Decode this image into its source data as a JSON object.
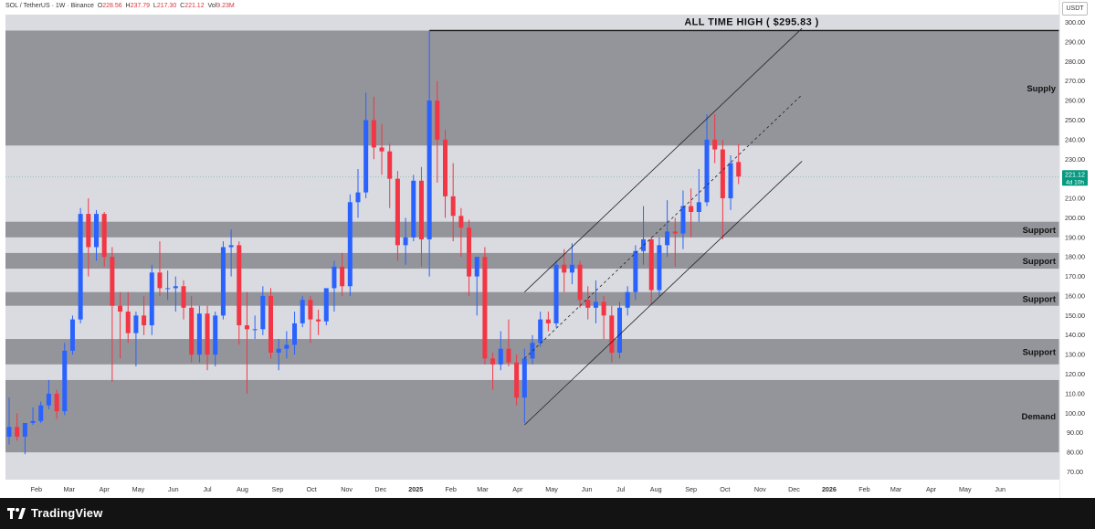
{
  "header": {
    "symbol": "SOL / TetherUS · 1W · Binance",
    "open_label": "O",
    "open": "228.56",
    "high_label": "H",
    "high": "237.79",
    "low_label": "L",
    "low": "217.30",
    "close_label": "C",
    "close": "221.12",
    "vol_label": "Vol",
    "vol": "9.23M"
  },
  "currency_badge": "USDT",
  "brand": "TradingView",
  "price_badge": {
    "price": "221.12",
    "countdown": "4d 10h"
  },
  "colors": {
    "up": "#2962ff",
    "down": "#f23645",
    "zone_dark": "#8f9196",
    "zone_light": "#d9dbe0",
    "channel": "#222222"
  },
  "chart_data": {
    "type": "candlestick",
    "title": "",
    "xlabel": "",
    "ylabel": "",
    "ylim": [
      66,
      304
    ],
    "y_ticks": [
      70,
      80,
      90,
      100,
      110,
      120,
      130,
      140,
      150,
      160,
      170,
      180,
      190,
      200,
      210,
      220,
      230,
      240,
      250,
      260,
      270,
      280,
      290,
      300
    ],
    "x_range": [
      "2024-01-08",
      "2026-07-20"
    ],
    "x_ticks": [
      {
        "date": "2024-02-01",
        "label": "Feb"
      },
      {
        "date": "2024-03-01",
        "label": "Mar"
      },
      {
        "date": "2024-04-01",
        "label": "Apr"
      },
      {
        "date": "2024-05-01",
        "label": "May"
      },
      {
        "date": "2024-06-01",
        "label": "Jun"
      },
      {
        "date": "2024-07-01",
        "label": "Jul"
      },
      {
        "date": "2024-08-01",
        "label": "Aug"
      },
      {
        "date": "2024-09-01",
        "label": "Sep"
      },
      {
        "date": "2024-10-01",
        "label": "Oct"
      },
      {
        "date": "2024-11-01",
        "label": "Nov"
      },
      {
        "date": "2024-12-01",
        "label": "Dec"
      },
      {
        "date": "2025-01-01",
        "label": "2025"
      },
      {
        "date": "2025-02-01",
        "label": "Feb"
      },
      {
        "date": "2025-03-01",
        "label": "Mar"
      },
      {
        "date": "2025-04-01",
        "label": "Apr"
      },
      {
        "date": "2025-05-01",
        "label": "May"
      },
      {
        "date": "2025-06-01",
        "label": "Jun"
      },
      {
        "date": "2025-07-01",
        "label": "Jul"
      },
      {
        "date": "2025-08-01",
        "label": "Aug"
      },
      {
        "date": "2025-09-01",
        "label": "Sep"
      },
      {
        "date": "2025-10-01",
        "label": "Oct"
      },
      {
        "date": "2025-11-01",
        "label": "Nov"
      },
      {
        "date": "2025-12-01",
        "label": "Dec"
      },
      {
        "date": "2026-01-01",
        "label": "2026"
      },
      {
        "date": "2026-02-01",
        "label": "Feb"
      },
      {
        "date": "2026-03-01",
        "label": "Mar"
      },
      {
        "date": "2026-04-01",
        "label": "Apr"
      },
      {
        "date": "2026-05-01",
        "label": "May"
      },
      {
        "date": "2026-06-01",
        "label": "Jun"
      }
    ],
    "ohlc": [
      {
        "d": "2024-01-08",
        "o": 88,
        "h": 108,
        "l": 84,
        "c": 93
      },
      {
        "d": "2024-01-15",
        "o": 93,
        "h": 100,
        "l": 86,
        "c": 88
      },
      {
        "d": "2024-01-22",
        "o": 88,
        "h": 95,
        "l": 79,
        "c": 95
      },
      {
        "d": "2024-01-29",
        "o": 95,
        "h": 103,
        "l": 94,
        "c": 96
      },
      {
        "d": "2024-02-05",
        "o": 96,
        "h": 106,
        "l": 95,
        "c": 104
      },
      {
        "d": "2024-02-12",
        "o": 104,
        "h": 117,
        "l": 102,
        "c": 110
      },
      {
        "d": "2024-02-19",
        "o": 110,
        "h": 112,
        "l": 97,
        "c": 101
      },
      {
        "d": "2024-02-26",
        "o": 101,
        "h": 136,
        "l": 99,
        "c": 132
      },
      {
        "d": "2024-03-04",
        "o": 132,
        "h": 150,
        "l": 130,
        "c": 148
      },
      {
        "d": "2024-03-11",
        "o": 148,
        "h": 205,
        "l": 146,
        "c": 202
      },
      {
        "d": "2024-03-18",
        "o": 202,
        "h": 210,
        "l": 170,
        "c": 185
      },
      {
        "d": "2024-03-25",
        "o": 185,
        "h": 204,
        "l": 178,
        "c": 202
      },
      {
        "d": "2024-04-01",
        "o": 202,
        "h": 203,
        "l": 175,
        "c": 180
      },
      {
        "d": "2024-04-08",
        "o": 180,
        "h": 185,
        "l": 116,
        "c": 155
      },
      {
        "d": "2024-04-15",
        "o": 155,
        "h": 162,
        "l": 128,
        "c": 152
      },
      {
        "d": "2024-04-22",
        "o": 152,
        "h": 162,
        "l": 136,
        "c": 141
      },
      {
        "d": "2024-04-29",
        "o": 141,
        "h": 152,
        "l": 124,
        "c": 150
      },
      {
        "d": "2024-05-06",
        "o": 150,
        "h": 160,
        "l": 140,
        "c": 145
      },
      {
        "d": "2024-05-13",
        "o": 145,
        "h": 176,
        "l": 140,
        "c": 172
      },
      {
        "d": "2024-05-20",
        "o": 172,
        "h": 188,
        "l": 160,
        "c": 164
      },
      {
        "d": "2024-05-27",
        "o": 164,
        "h": 173,
        "l": 158,
        "c": 164
      },
      {
        "d": "2024-06-03",
        "o": 164,
        "h": 170,
        "l": 152,
        "c": 165
      },
      {
        "d": "2024-06-10",
        "o": 165,
        "h": 168,
        "l": 148,
        "c": 154
      },
      {
        "d": "2024-06-17",
        "o": 154,
        "h": 160,
        "l": 126,
        "c": 130
      },
      {
        "d": "2024-06-24",
        "o": 130,
        "h": 155,
        "l": 126,
        "c": 151
      },
      {
        "d": "2024-07-01",
        "o": 151,
        "h": 155,
        "l": 122,
        "c": 130
      },
      {
        "d": "2024-07-08",
        "o": 130,
        "h": 152,
        "l": 124,
        "c": 150
      },
      {
        "d": "2024-07-15",
        "o": 150,
        "h": 188,
        "l": 148,
        "c": 185
      },
      {
        "d": "2024-07-22",
        "o": 185,
        "h": 194,
        "l": 170,
        "c": 186
      },
      {
        "d": "2024-07-29",
        "o": 186,
        "h": 188,
        "l": 135,
        "c": 145
      },
      {
        "d": "2024-08-05",
        "o": 145,
        "h": 162,
        "l": 110,
        "c": 143
      },
      {
        "d": "2024-08-12",
        "o": 143,
        "h": 150,
        "l": 138,
        "c": 143
      },
      {
        "d": "2024-08-19",
        "o": 143,
        "h": 165,
        "l": 140,
        "c": 160
      },
      {
        "d": "2024-08-26",
        "o": 160,
        "h": 164,
        "l": 128,
        "c": 131
      },
      {
        "d": "2024-09-02",
        "o": 131,
        "h": 138,
        "l": 122,
        "c": 133
      },
      {
        "d": "2024-09-09",
        "o": 133,
        "h": 142,
        "l": 128,
        "c": 135
      },
      {
        "d": "2024-09-16",
        "o": 135,
        "h": 152,
        "l": 130,
        "c": 146
      },
      {
        "d": "2024-09-23",
        "o": 146,
        "h": 160,
        "l": 144,
        "c": 158
      },
      {
        "d": "2024-09-30",
        "o": 158,
        "h": 160,
        "l": 136,
        "c": 148
      },
      {
        "d": "2024-10-07",
        "o": 148,
        "h": 153,
        "l": 140,
        "c": 147
      },
      {
        "d": "2024-10-14",
        "o": 147,
        "h": 162,
        "l": 145,
        "c": 164
      },
      {
        "d": "2024-10-21",
        "o": 164,
        "h": 178,
        "l": 152,
        "c": 175
      },
      {
        "d": "2024-10-28",
        "o": 175,
        "h": 182,
        "l": 160,
        "c": 165
      },
      {
        "d": "2024-11-04",
        "o": 165,
        "h": 212,
        "l": 160,
        "c": 208
      },
      {
        "d": "2024-11-11",
        "o": 208,
        "h": 225,
        "l": 200,
        "c": 213
      },
      {
        "d": "2024-11-18",
        "o": 213,
        "h": 264,
        "l": 210,
        "c": 250
      },
      {
        "d": "2024-11-25",
        "o": 250,
        "h": 262,
        "l": 230,
        "c": 236
      },
      {
        "d": "2024-12-02",
        "o": 236,
        "h": 248,
        "l": 222,
        "c": 234
      },
      {
        "d": "2024-12-09",
        "o": 234,
        "h": 238,
        "l": 205,
        "c": 220
      },
      {
        "d": "2024-12-16",
        "o": 220,
        "h": 224,
        "l": 178,
        "c": 186
      },
      {
        "d": "2024-12-23",
        "o": 186,
        "h": 200,
        "l": 176,
        "c": 190
      },
      {
        "d": "2024-12-30",
        "o": 190,
        "h": 222,
        "l": 188,
        "c": 219
      },
      {
        "d": "2025-01-06",
        "o": 219,
        "h": 226,
        "l": 175,
        "c": 189
      },
      {
        "d": "2025-01-13",
        "o": 189,
        "h": 295.83,
        "l": 170,
        "c": 260
      },
      {
        "d": "2025-01-20",
        "o": 260,
        "h": 270,
        "l": 218,
        "c": 240
      },
      {
        "d": "2025-01-27",
        "o": 240,
        "h": 245,
        "l": 200,
        "c": 211
      },
      {
        "d": "2025-02-03",
        "o": 211,
        "h": 228,
        "l": 188,
        "c": 201
      },
      {
        "d": "2025-02-10",
        "o": 201,
        "h": 205,
        "l": 180,
        "c": 195
      },
      {
        "d": "2025-02-17",
        "o": 195,
        "h": 199,
        "l": 160,
        "c": 170
      },
      {
        "d": "2025-02-24",
        "o": 170,
        "h": 180,
        "l": 150,
        "c": 180
      },
      {
        "d": "2025-03-03",
        "o": 180,
        "h": 185,
        "l": 125,
        "c": 128
      },
      {
        "d": "2025-03-10",
        "o": 128,
        "h": 131,
        "l": 112,
        "c": 125
      },
      {
        "d": "2025-03-17",
        "o": 125,
        "h": 142,
        "l": 122,
        "c": 133
      },
      {
        "d": "2025-03-24",
        "o": 133,
        "h": 148,
        "l": 124,
        "c": 126
      },
      {
        "d": "2025-03-31",
        "o": 126,
        "h": 130,
        "l": 104,
        "c": 108
      },
      {
        "d": "2025-04-07",
        "o": 108,
        "h": 133,
        "l": 95,
        "c": 128
      },
      {
        "d": "2025-04-14",
        "o": 128,
        "h": 140,
        "l": 125,
        "c": 136
      },
      {
        "d": "2025-04-21",
        "o": 136,
        "h": 152,
        "l": 134,
        "c": 148
      },
      {
        "d": "2025-04-28",
        "o": 148,
        "h": 152,
        "l": 142,
        "c": 146
      },
      {
        "d": "2025-05-05",
        "o": 146,
        "h": 178,
        "l": 144,
        "c": 176
      },
      {
        "d": "2025-05-12",
        "o": 176,
        "h": 184,
        "l": 162,
        "c": 172
      },
      {
        "d": "2025-05-19",
        "o": 172,
        "h": 187,
        "l": 166,
        "c": 176
      },
      {
        "d": "2025-05-26",
        "o": 176,
        "h": 178,
        "l": 154,
        "c": 158
      },
      {
        "d": "2025-06-02",
        "o": 158,
        "h": 165,
        "l": 148,
        "c": 154
      },
      {
        "d": "2025-06-09",
        "o": 154,
        "h": 168,
        "l": 146,
        "c": 157
      },
      {
        "d": "2025-06-16",
        "o": 157,
        "h": 160,
        "l": 138,
        "c": 150
      },
      {
        "d": "2025-06-23",
        "o": 150,
        "h": 155,
        "l": 126,
        "c": 131
      },
      {
        "d": "2025-06-30",
        "o": 131,
        "h": 157,
        "l": 128,
        "c": 154
      },
      {
        "d": "2025-07-07",
        "o": 154,
        "h": 165,
        "l": 150,
        "c": 162
      },
      {
        "d": "2025-07-14",
        "o": 162,
        "h": 186,
        "l": 158,
        "c": 183
      },
      {
        "d": "2025-07-21",
        "o": 183,
        "h": 206,
        "l": 176,
        "c": 189
      },
      {
        "d": "2025-07-28",
        "o": 189,
        "h": 190,
        "l": 156,
        "c": 163
      },
      {
        "d": "2025-08-04",
        "o": 163,
        "h": 190,
        "l": 160,
        "c": 186
      },
      {
        "d": "2025-08-11",
        "o": 186,
        "h": 209,
        "l": 180,
        "c": 193
      },
      {
        "d": "2025-08-18",
        "o": 193,
        "h": 200,
        "l": 175,
        "c": 192
      },
      {
        "d": "2025-08-25",
        "o": 192,
        "h": 214,
        "l": 184,
        "c": 206
      },
      {
        "d": "2025-09-01",
        "o": 206,
        "h": 215,
        "l": 190,
        "c": 203
      },
      {
        "d": "2025-09-08",
        "o": 203,
        "h": 225,
        "l": 198,
        "c": 208
      },
      {
        "d": "2025-09-15",
        "o": 208,
        "h": 253,
        "l": 206,
        "c": 240
      },
      {
        "d": "2025-09-22",
        "o": 240,
        "h": 253,
        "l": 228,
        "c": 235
      },
      {
        "d": "2025-09-29",
        "o": 235,
        "h": 240,
        "l": 189,
        "c": 210
      },
      {
        "d": "2025-10-06",
        "o": 210,
        "h": 232,
        "l": 204,
        "c": 228
      },
      {
        "d": "2025-10-13",
        "o": 228.56,
        "h": 237.79,
        "l": 217.3,
        "c": 221.12
      }
    ],
    "zones": [
      {
        "label": "Supply",
        "from": 237,
        "to": 295.83,
        "shade": "dark"
      },
      {
        "label": "Support",
        "from": 190,
        "to": 198,
        "shade": "dark"
      },
      {
        "label": "Support",
        "from": 174,
        "to": 182,
        "shade": "dark"
      },
      {
        "label": "Support",
        "from": 155,
        "to": 162,
        "shade": "dark"
      },
      {
        "label": "Support",
        "from": 125,
        "to": 138,
        "shade": "dark"
      },
      {
        "label": "Demand",
        "from": 80,
        "to": 117,
        "shade": "dark"
      }
    ],
    "ath": {
      "label": "ALL TIME HIGH ( $295.83 )",
      "value": 295.83,
      "from": "2025-01-13"
    },
    "channel": [
      {
        "style": "solid",
        "from": {
          "d": "2025-04-07",
          "p": 162
        },
        "to": {
          "d": "2025-12-08",
          "p": 297
        }
      },
      {
        "style": "dashed",
        "from": {
          "d": "2025-04-07",
          "p": 128
        },
        "to": {
          "d": "2025-12-08",
          "p": 263
        }
      },
      {
        "style": "solid",
        "from": {
          "d": "2025-04-07",
          "p": 94
        },
        "to": {
          "d": "2025-12-08",
          "p": 229
        }
      }
    ],
    "last_price": 221.12
  }
}
